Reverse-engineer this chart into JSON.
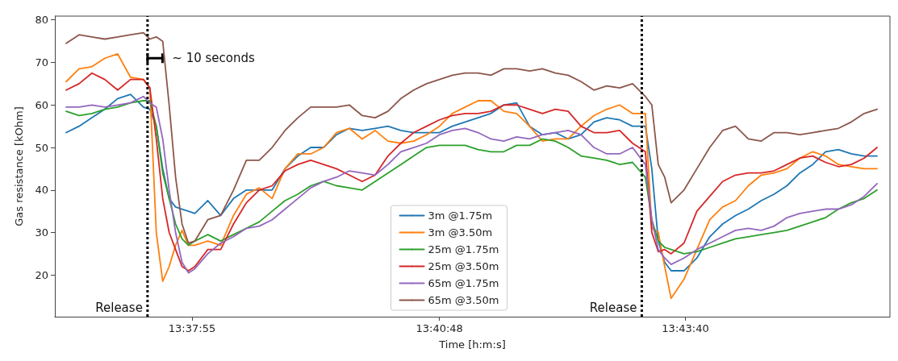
{
  "chart_data": {
    "type": "line",
    "xlabel": "Time [h:m:s]",
    "ylabel": "Gas resistance [kOhm]",
    "x": [
      13.6075,
      13.61,
      13.6125,
      13.615,
      13.6175,
      13.62,
      13.6225,
      13.62375,
      13.625,
      13.62625,
      13.6275,
      13.62875,
      13.63,
      13.63125,
      13.6325,
      13.635,
      13.6375,
      13.64,
      13.6425,
      13.645,
      13.6475,
      13.65,
      13.6525,
      13.655,
      13.6575,
      13.66,
      13.6625,
      13.665,
      13.6675,
      13.67,
      13.6725,
      13.675,
      13.6775,
      13.68,
      13.6825,
      13.685,
      13.6875,
      13.69,
      13.6925,
      13.695,
      13.6975,
      13.7,
      13.7025,
      13.705,
      13.7075,
      13.71,
      13.7125,
      13.715,
      13.7175,
      13.72,
      13.72125,
      13.7225,
      13.72375,
      13.725,
      13.7275,
      13.73,
      13.7325,
      13.735,
      13.7375,
      13.74,
      13.7425,
      13.745,
      13.7475,
      13.75,
      13.7525,
      13.755,
      13.7575,
      13.76,
      13.7625,
      13.765
    ],
    "series": [
      {
        "name": "3m @1.75m",
        "color": "#1f77b4",
        "values": [
          53.5,
          55,
          57,
          59,
          61.5,
          62.5,
          59.5,
          59,
          55,
          45,
          38,
          36,
          35.5,
          35,
          34.5,
          37.5,
          34,
          38,
          40,
          40,
          40,
          45,
          48,
          50,
          50,
          53,
          54.5,
          54,
          54.5,
          55,
          54,
          53.5,
          53.5,
          53.5,
          55,
          56,
          57,
          58,
          60,
          60.5,
          55,
          53,
          53.5,
          52,
          53,
          56,
          57,
          56.5,
          55,
          55,
          45,
          28,
          23,
          21,
          21,
          24,
          29,
          32,
          34,
          35.5,
          37.5,
          39,
          41,
          44,
          46,
          49,
          49.5,
          48.5,
          48,
          48
        ]
      },
      {
        "name": "3m @3.50m",
        "color": "#ff7f0e",
        "values": [
          65.5,
          68.5,
          69,
          71,
          72,
          66.5,
          66,
          64,
          30,
          18.5,
          22,
          27,
          30.5,
          27,
          27,
          28,
          27,
          34,
          39,
          40.5,
          38,
          45,
          48.5,
          48.5,
          50,
          53.5,
          54.5,
          52,
          54,
          51.5,
          51,
          51.5,
          53,
          55,
          58,
          59.5,
          61,
          61,
          58.5,
          58,
          55,
          51.5,
          52,
          52,
          55,
          57.5,
          59,
          60,
          58,
          58,
          31,
          30,
          22,
          14.5,
          19,
          26,
          33,
          36,
          37.5,
          41,
          43.5,
          44,
          45,
          47.5,
          49,
          48,
          46,
          45.5,
          45,
          45
        ]
      },
      {
        "name": "25m @1.75m",
        "color": "#2ca02c",
        "values": [
          58.5,
          57.5,
          58,
          59,
          59.5,
          60.5,
          61,
          61,
          55,
          44,
          38,
          32,
          28.5,
          27,
          28,
          29.5,
          28,
          29.5,
          31,
          32.5,
          35,
          37.5,
          39,
          41,
          42,
          41,
          40.5,
          40,
          42,
          44,
          46,
          48,
          50,
          50.5,
          50.5,
          50.5,
          49.5,
          49,
          49,
          50.5,
          50.5,
          52,
          51.5,
          50,
          48,
          47.5,
          47,
          46,
          46.5,
          43,
          33,
          28,
          26.5,
          26,
          25,
          25.5,
          26.5,
          27.5,
          28.5,
          29,
          29.5,
          30,
          30.5,
          31.5,
          32.5,
          33.5,
          35.5,
          37,
          38,
          40
        ]
      },
      {
        "name": "25m @3.50m",
        "color": "#d62728",
        "values": [
          63.5,
          65,
          67.5,
          66,
          63.5,
          66,
          66,
          64,
          52,
          38,
          30,
          26,
          22,
          21,
          22,
          26,
          26,
          32,
          37,
          40,
          41,
          44.5,
          46,
          47,
          46,
          45,
          43.5,
          42,
          43.5,
          48,
          51,
          53.5,
          55,
          56.5,
          57.5,
          58,
          58,
          58.5,
          60,
          60,
          59,
          58,
          59,
          58.5,
          55,
          53.5,
          53.5,
          54,
          51,
          49,
          30,
          25.5,
          26,
          25,
          27.5,
          35,
          38.5,
          42,
          43.5,
          44,
          44,
          44.5,
          46,
          47.5,
          48,
          46.5,
          45.5,
          46,
          47.5,
          50
        ]
      },
      {
        "name": "65m @1.75m",
        "color": "#9467bd",
        "values": [
          59.5,
          59.5,
          60,
          59.5,
          60,
          60.5,
          62,
          60.5,
          59.5,
          52,
          40,
          30,
          23,
          20.5,
          21.5,
          25,
          27.5,
          29,
          31,
          31.5,
          33,
          35.5,
          38,
          40.5,
          42,
          43,
          44.5,
          44,
          43.5,
          46,
          49,
          50,
          51,
          53,
          54,
          54.5,
          53.5,
          52,
          51.5,
          52.5,
          52,
          53,
          53.5,
          54,
          53,
          50,
          48.5,
          48.5,
          50,
          46,
          33,
          26,
          24,
          22.5,
          24,
          26,
          27.5,
          29,
          30.5,
          31,
          30.5,
          31.5,
          33.5,
          34.5,
          35,
          35.5,
          35.5,
          36.5,
          38.5,
          41.5
        ]
      },
      {
        "name": "65m @3.50m",
        "color": "#8c564b",
        "values": [
          74.5,
          76.5,
          76,
          75.5,
          76,
          76.5,
          77,
          75.5,
          76,
          75,
          60,
          43,
          32,
          27.5,
          28,
          33,
          34,
          40,
          47,
          47,
          50,
          54,
          57,
          59.5,
          59.5,
          59.5,
          60,
          57.5,
          57,
          58.5,
          61.5,
          63.5,
          65,
          66,
          67,
          67.5,
          67.5,
          67,
          68.5,
          68.5,
          68,
          68.5,
          67.5,
          67,
          65.5,
          63.5,
          64.5,
          64,
          65,
          62,
          60,
          46,
          43,
          37,
          40,
          45,
          50,
          54,
          55,
          52,
          51.5,
          53.5,
          53.5,
          53,
          53.5,
          54,
          54.5,
          56,
          58,
          59
        ]
      }
    ],
    "xlim": [
      13.6053,
      13.7675
    ],
    "xticks": [
      {
        "value": 13.631944,
        "label": "13:37:55"
      },
      {
        "value": 13.68,
        "label": "13:40:48"
      },
      {
        "value": 13.727778,
        "label": "13:43:40"
      }
    ],
    "ylim": [
      10.2,
      80.9
    ],
    "yticks": [
      20,
      30,
      40,
      50,
      60,
      70,
      80
    ],
    "ref_lines": [
      {
        "axis": "x",
        "value": 13.6233,
        "label": "Release",
        "color": "#000000",
        "line_style": "dotted"
      },
      {
        "axis": "x",
        "value": 13.7193,
        "label": "Release",
        "color": "#000000",
        "line_style": "dotted"
      }
    ],
    "annotations": [
      {
        "text": "~ 10 seconds",
        "x": 13.6262,
        "y": 71
      }
    ],
    "legend": "bottom",
    "grid": false,
    "marker": "none",
    "line_style": "solid"
  }
}
